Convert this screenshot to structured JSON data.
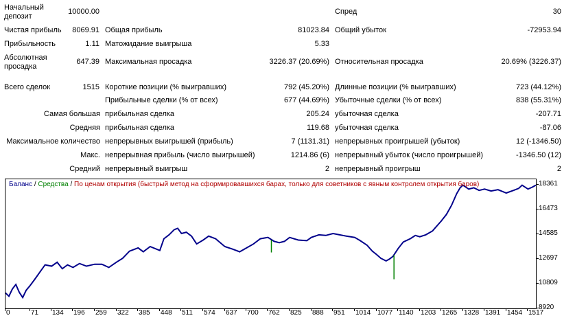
{
  "stats": {
    "initial_deposit": {
      "label": "Начальный депозит",
      "value": "10000.00"
    },
    "spread": {
      "label": "Спред",
      "value": "30"
    },
    "net_profit": {
      "label": "Чистая прибыль",
      "value": "8069.91"
    },
    "gross_profit": {
      "label": "Общая прибыль",
      "value": "81023.84"
    },
    "gross_loss": {
      "label": "Общий убыток",
      "value": "-72953.94"
    },
    "profit_factor": {
      "label": "Прибыльность",
      "value": "1.11"
    },
    "expected_payoff": {
      "label": "Матожидание выигрыша",
      "value": "5.33"
    },
    "absolute_drawdown": {
      "label": "Абсолютная просадка",
      "value": "647.39"
    },
    "maximal_drawdown": {
      "label": "Максимальная просадка",
      "value": "3226.37 (20.69%)"
    },
    "relative_drawdown": {
      "label": "Относительная просадка",
      "value": "20.69% (3226.37)"
    },
    "total_trades": {
      "label": "Всего сделок",
      "value": "1515"
    },
    "short_positions": {
      "label": "Короткие позиции (% выигравших)",
      "value": "792 (45.20%)"
    },
    "long_positions": {
      "label": "Длинные позиции (% выигравших)",
      "value": "723 (44.12%)"
    },
    "profit_trades": {
      "label": "Прибыльные сделки (% от всех)",
      "value": "677 (44.69%)"
    },
    "loss_trades": {
      "label": "Убыточные сделки (% от всех)",
      "value": "838 (55.31%)"
    },
    "largest": {
      "label": "Самая большая",
      "profit_label": "прибыльная сделка",
      "profit_value": "205.24",
      "loss_label": "убыточная сделка",
      "loss_value": "-207.71"
    },
    "average": {
      "label": "Средняя",
      "profit_label": "прибыльная сделка",
      "profit_value": "119.68",
      "loss_label": "убыточная сделка",
      "loss_value": "-87.06"
    },
    "max_consecutive": {
      "label": "Максимальное количество",
      "wins_label": "непрерывных выигрышей (прибыль)",
      "wins_value": "7 (1131.31)",
      "losses_label": "непрерывных проигрышей (убыток)",
      "losses_value": "12 (-1346.50)"
    },
    "max_consecutive_amount": {
      "label": "Макс.",
      "wins_label": "непрерывная прибыль (число выигрышей)",
      "wins_value": "1214.86 (6)",
      "losses_label": "непрерывный убыток (число проигрышей)",
      "losses_value": "-1346.50 (12)"
    },
    "avg_consecutive": {
      "label": "Средний",
      "wins_label": "непрерывный выигрыш",
      "wins_value": "2",
      "losses_label": "непрерывный проигрыш",
      "losses_value": "2"
    }
  },
  "chart_data": {
    "type": "line",
    "legend": {
      "balance": "Баланс",
      "sep1": " / ",
      "equity": "Средства",
      "sep2": " / ",
      "model": "По ценам открытия (быстрый метод на сформировавшихся барах, только для советников с явным контролем открытия баров)"
    },
    "colors": {
      "balance": "#00008B",
      "equity": "#008000",
      "model": "#B00000",
      "axis": "#000000"
    },
    "x_ticks": [
      "0",
      "71",
      "134",
      "196",
      "259",
      "322",
      "385",
      "448",
      "511",
      "574",
      "637",
      "700",
      "762",
      "825",
      "888",
      "951",
      "1014",
      "1077",
      "1140",
      "1203",
      "1265",
      "1328",
      "1391",
      "1454",
      "1517"
    ],
    "y_ticks": [
      "18361",
      "16473",
      "14585",
      "12697",
      "10809",
      "8920"
    ],
    "xlim": [
      0,
      1540
    ],
    "ylim": [
      8920,
      18800
    ],
    "series": [
      {
        "name": "Баланс",
        "points": [
          [
            0,
            10100
          ],
          [
            10,
            9850
          ],
          [
            20,
            10400
          ],
          [
            30,
            10750
          ],
          [
            40,
            10150
          ],
          [
            50,
            9750
          ],
          [
            60,
            10300
          ],
          [
            71,
            10650
          ],
          [
            85,
            11150
          ],
          [
            100,
            11700
          ],
          [
            115,
            12250
          ],
          [
            134,
            12150
          ],
          [
            150,
            12450
          ],
          [
            165,
            11950
          ],
          [
            180,
            12250
          ],
          [
            196,
            12050
          ],
          [
            215,
            12350
          ],
          [
            235,
            12150
          ],
          [
            259,
            12300
          ],
          [
            280,
            12300
          ],
          [
            300,
            12050
          ],
          [
            322,
            12450
          ],
          [
            340,
            12750
          ],
          [
            360,
            13300
          ],
          [
            385,
            13550
          ],
          [
            400,
            13250
          ],
          [
            420,
            13650
          ],
          [
            448,
            13350
          ],
          [
            460,
            14250
          ],
          [
            475,
            14550
          ],
          [
            490,
            14950
          ],
          [
            500,
            15050
          ],
          [
            511,
            14650
          ],
          [
            525,
            14750
          ],
          [
            540,
            14450
          ],
          [
            555,
            13850
          ],
          [
            574,
            14150
          ],
          [
            590,
            14450
          ],
          [
            610,
            14250
          ],
          [
            637,
            13650
          ],
          [
            660,
            13450
          ],
          [
            680,
            13250
          ],
          [
            700,
            13550
          ],
          [
            720,
            13850
          ],
          [
            740,
            14250
          ],
          [
            762,
            14350
          ],
          [
            780,
            14050
          ],
          [
            795,
            13950
          ],
          [
            810,
            14050
          ],
          [
            825,
            14350
          ],
          [
            850,
            14150
          ],
          [
            875,
            14100
          ],
          [
            888,
            14350
          ],
          [
            910,
            14550
          ],
          [
            930,
            14500
          ],
          [
            951,
            14650
          ],
          [
            970,
            14550
          ],
          [
            990,
            14450
          ],
          [
            1014,
            14350
          ],
          [
            1030,
            14100
          ],
          [
            1050,
            13750
          ],
          [
            1065,
            13300
          ],
          [
            1077,
            13050
          ],
          [
            1090,
            12750
          ],
          [
            1105,
            12550
          ],
          [
            1115,
            12700
          ],
          [
            1125,
            12900
          ],
          [
            1140,
            13500
          ],
          [
            1155,
            14000
          ],
          [
            1175,
            14250
          ],
          [
            1190,
            14500
          ],
          [
            1203,
            14400
          ],
          [
            1220,
            14550
          ],
          [
            1240,
            14850
          ],
          [
            1255,
            15300
          ],
          [
            1265,
            15600
          ],
          [
            1280,
            16100
          ],
          [
            1295,
            16800
          ],
          [
            1310,
            17700
          ],
          [
            1320,
            18150
          ],
          [
            1328,
            18350
          ],
          [
            1345,
            18050
          ],
          [
            1360,
            18150
          ],
          [
            1375,
            17950
          ],
          [
            1391,
            18050
          ],
          [
            1410,
            17900
          ],
          [
            1430,
            18000
          ],
          [
            1454,
            17750
          ],
          [
            1475,
            17950
          ],
          [
            1490,
            18100
          ],
          [
            1500,
            18350
          ],
          [
            1517,
            18050
          ],
          [
            1530,
            18200
          ],
          [
            1540,
            18350
          ]
        ]
      },
      {
        "name": "Средства",
        "spikes": [
          [
            772,
            14150,
            13200
          ],
          [
            1128,
            13000,
            11150
          ]
        ]
      }
    ]
  }
}
